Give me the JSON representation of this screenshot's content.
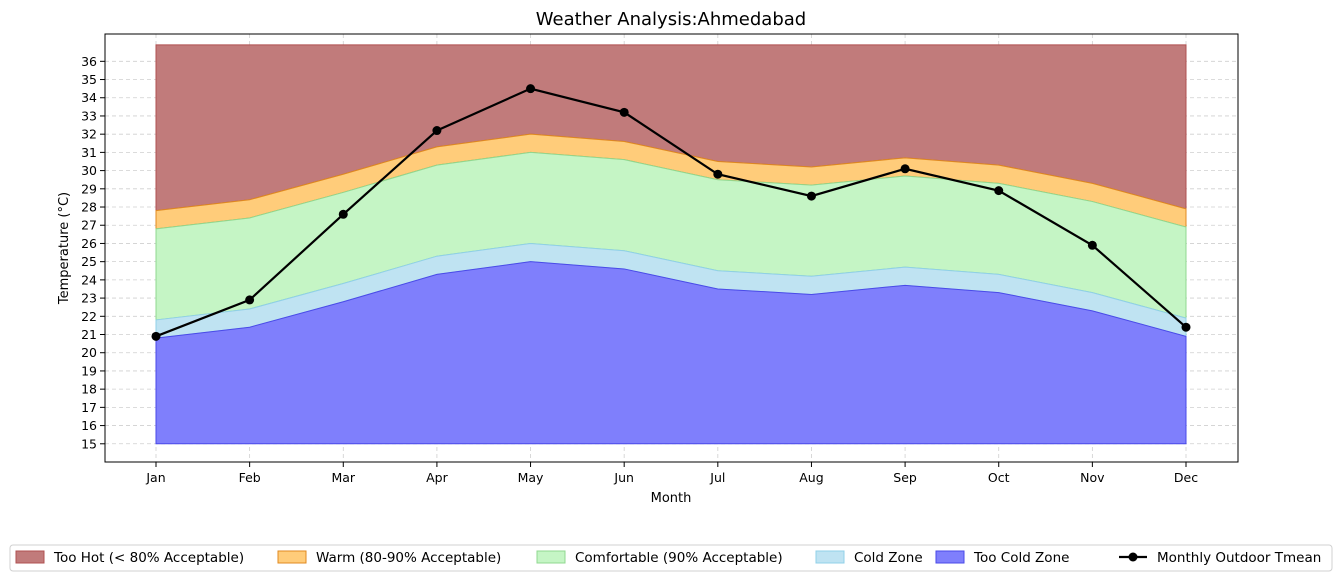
{
  "chart_data": {
    "type": "area",
    "title": "Weather Analysis:Ahmedabad",
    "xlabel": "Month",
    "ylabel": "Temperature (°C)",
    "categories": [
      "Jan",
      "Feb",
      "Mar",
      "Apr",
      "May",
      "Jun",
      "Jul",
      "Aug",
      "Sep",
      "Oct",
      "Nov",
      "Dec"
    ],
    "ylim": [
      14,
      37.5
    ],
    "yticks": [
      15,
      16,
      17,
      18,
      19,
      20,
      21,
      22,
      23,
      24,
      25,
      26,
      27,
      28,
      29,
      30,
      31,
      32,
      33,
      34,
      35,
      36
    ],
    "grid": true,
    "legend_position": "bottom",
    "bands": [
      {
        "name": "Too Hot (< 80% Acceptable)",
        "color": "#c17b7b",
        "edge": "#b05050",
        "lower": [
          27.8,
          28.4,
          29.8,
          31.3,
          32.0,
          31.6,
          30.5,
          30.2,
          30.7,
          30.3,
          29.3,
          27.9
        ],
        "upper": [
          36.9,
          36.9,
          36.9,
          36.9,
          36.9,
          36.9,
          36.9,
          36.9,
          36.9,
          36.9,
          36.9,
          36.9
        ]
      },
      {
        "name": "Warm (80-90% Acceptable)",
        "color": "#ffcc7a",
        "edge": "#e08a20",
        "lower": [
          26.8,
          27.4,
          28.8,
          30.3,
          31.0,
          30.6,
          29.5,
          29.2,
          29.7,
          29.3,
          28.3,
          26.9
        ],
        "upper": [
          27.8,
          28.4,
          29.8,
          31.3,
          32.0,
          31.6,
          30.5,
          30.2,
          30.7,
          30.3,
          29.3,
          27.9
        ]
      },
      {
        "name": "Comfortable (90% Acceptable)",
        "color": "#c5f5c5",
        "edge": "#90d890",
        "lower": [
          21.8,
          22.4,
          23.8,
          25.3,
          26.0,
          25.6,
          24.5,
          24.2,
          24.7,
          24.3,
          23.3,
          21.9
        ],
        "upper": [
          26.8,
          27.4,
          28.8,
          30.3,
          31.0,
          30.6,
          29.5,
          29.2,
          29.7,
          29.3,
          28.3,
          26.9
        ]
      },
      {
        "name": "Cold Zone",
        "color": "#bfe3f2",
        "edge": "#90d0e8",
        "lower": [
          20.8,
          21.4,
          22.8,
          24.3,
          25.0,
          24.6,
          23.5,
          23.2,
          23.7,
          23.3,
          22.3,
          20.9
        ],
        "upper": [
          21.8,
          22.4,
          23.8,
          25.3,
          26.0,
          25.6,
          24.5,
          24.2,
          24.7,
          24.3,
          23.3,
          21.9
        ]
      },
      {
        "name": "Too Cold Zone",
        "color": "#7f7ffc",
        "edge": "#4a4ae8",
        "lower": [
          15,
          15,
          15,
          15,
          15,
          15,
          15,
          15,
          15,
          15,
          15,
          15
        ],
        "upper": [
          20.8,
          21.4,
          22.8,
          24.3,
          25.0,
          24.6,
          23.5,
          23.2,
          23.7,
          23.3,
          22.3,
          20.9
        ]
      }
    ],
    "series": [
      {
        "name": "Monthly Outdoor Tmean",
        "color": "#000000",
        "values": [
          20.9,
          22.9,
          27.6,
          32.2,
          34.5,
          33.2,
          29.8,
          28.6,
          30.1,
          28.9,
          25.9,
          21.4
        ]
      }
    ]
  }
}
